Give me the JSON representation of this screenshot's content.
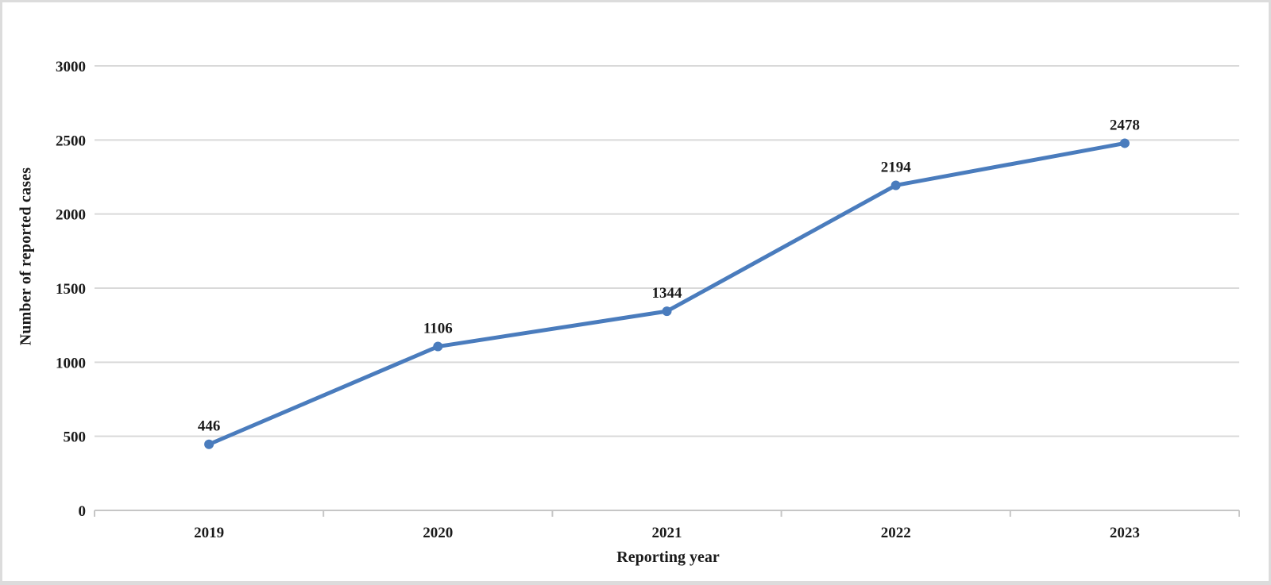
{
  "figure": {
    "background": "#ffffff",
    "border_color": "#dcdcdc"
  },
  "chart_data": {
    "type": "line",
    "title": "",
    "categories": [
      "2019",
      "2020",
      "2021",
      "2022",
      "2023"
    ],
    "series": [
      {
        "name": "Number of reported cases",
        "values": [
          446,
          1106,
          1344,
          2194,
          2478
        ],
        "data_labels": [
          "446",
          "1106",
          "1344",
          "2194",
          "2478"
        ]
      }
    ],
    "xlabel": "Reporting year",
    "ylabel": "Number of reported cases",
    "ylim": [
      0,
      3000
    ],
    "yticks": [
      0,
      500,
      1000,
      1500,
      2000,
      2500,
      3000
    ],
    "grid": "horizontal-only",
    "legend_position": "none",
    "colors": {
      "line": "#4a7cbd",
      "marker": "#4a7cbd",
      "gridline": "#d9d9d9",
      "axis_line": "#c6c6c6",
      "text": "#1a1a1a"
    }
  }
}
